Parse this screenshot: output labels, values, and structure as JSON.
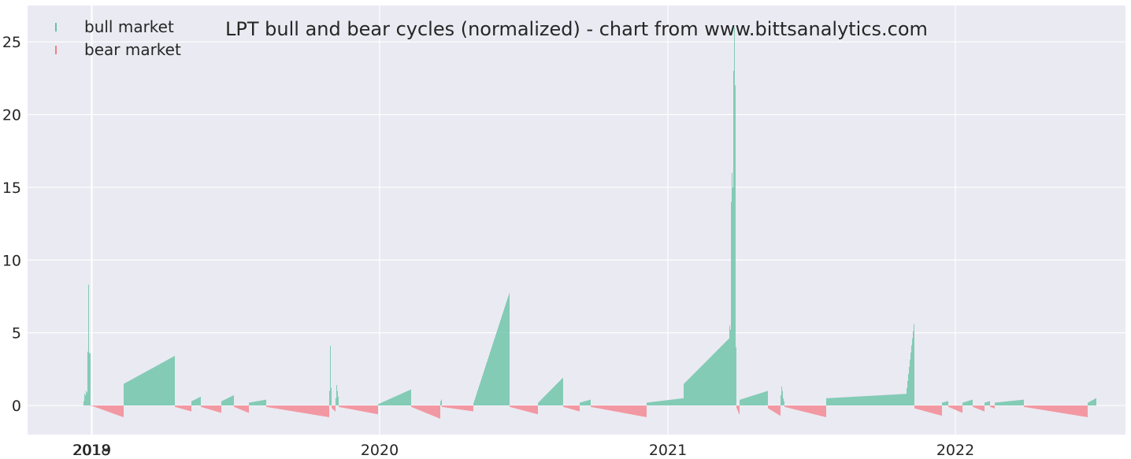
{
  "chart_data": {
    "type": "bar",
    "title": "LPT bull and bear cycles (normalized)  - chart from www.bittsanalytics.com",
    "xlabel": "",
    "ylabel": "",
    "ylim": [
      -2,
      27.5
    ],
    "xlim": [
      "2018-10-11",
      "2022-08-05"
    ],
    "x_ticks": [
      {
        "date": "2018-12-31",
        "label": "2018"
      },
      {
        "date": "2019-01-01",
        "label": "2019"
      },
      {
        "date": "2020-01-01",
        "label": "2020"
      },
      {
        "date": "2021-01-01",
        "label": "2021"
      },
      {
        "date": "2022-01-01",
        "label": "2022"
      }
    ],
    "y_ticks": [
      0,
      5,
      10,
      15,
      20,
      25
    ],
    "grid": true,
    "legend_position": "top-left",
    "series": [
      {
        "name": "bull market",
        "color": "#66c2a5"
      },
      {
        "name": "bear market",
        "color": "#f4808c"
      }
    ],
    "segments": [
      {
        "type": "bull",
        "start": "2018-12-21",
        "end": "2018-12-29",
        "values": [
          0.3,
          0.8,
          0.7,
          1.0,
          0.9,
          3.7,
          8.3,
          3.6
        ]
      },
      {
        "type": "bear",
        "start": "2018-12-30",
        "end": "2019-02-09",
        "from": 0.0,
        "to": -0.8
      },
      {
        "type": "bull",
        "start": "2019-02-10",
        "end": "2019-04-15",
        "from": 1.5,
        "to": 3.4
      },
      {
        "type": "bear",
        "start": "2019-04-16",
        "end": "2019-05-06",
        "from": -0.1,
        "to": -0.4
      },
      {
        "type": "bull",
        "start": "2019-05-07",
        "end": "2019-05-18",
        "from": 0.3,
        "to": 0.6
      },
      {
        "type": "bear",
        "start": "2019-05-19",
        "end": "2019-06-13",
        "from": -0.1,
        "to": -0.5
      },
      {
        "type": "bull",
        "start": "2019-06-14",
        "end": "2019-06-29",
        "from": 0.3,
        "to": 0.7
      },
      {
        "type": "bear",
        "start": "2019-06-30",
        "end": "2019-07-18",
        "from": -0.1,
        "to": -0.5
      },
      {
        "type": "bull",
        "start": "2019-07-19",
        "end": "2019-08-09",
        "from": 0.2,
        "to": 0.4
      },
      {
        "type": "bear",
        "start": "2019-08-10",
        "end": "2019-10-28",
        "from": -0.1,
        "to": -0.8
      },
      {
        "type": "bull",
        "start": "2019-10-29",
        "end": "2019-10-31",
        "values": [
          1.0,
          4.1,
          1.2
        ]
      },
      {
        "type": "bear",
        "start": "2019-11-01",
        "end": "2019-11-05",
        "from": -0.2,
        "to": -0.4
      },
      {
        "type": "bull",
        "start": "2019-11-06",
        "end": "2019-11-09",
        "values": [
          0.5,
          1.4,
          1.0,
          0.6
        ]
      },
      {
        "type": "bear",
        "start": "2019-11-10",
        "end": "2019-12-29",
        "from": -0.1,
        "to": -0.6
      },
      {
        "type": "bull",
        "start": "2019-12-30",
        "end": "2020-02-09",
        "from": 0.1,
        "to": 1.1
      },
      {
        "type": "bear",
        "start": "2020-02-10",
        "end": "2020-03-17",
        "from": -0.1,
        "to": -0.9
      },
      {
        "type": "bull",
        "start": "2020-03-18",
        "end": "2020-03-19",
        "values": [
          0.3,
          0.4
        ]
      },
      {
        "type": "bear",
        "start": "2020-03-20",
        "end": "2020-04-28",
        "from": -0.1,
        "to": -0.4
      },
      {
        "type": "bull",
        "start": "2020-04-29",
        "end": "2020-06-13",
        "from": 0.2,
        "to": 7.7
      },
      {
        "type": "bear",
        "start": "2020-06-14",
        "end": "2020-07-19",
        "from": -0.1,
        "to": -0.6
      },
      {
        "type": "bull",
        "start": "2020-07-20",
        "end": "2020-08-20",
        "from": 0.2,
        "to": 1.9
      },
      {
        "type": "bear",
        "start": "2020-08-21",
        "end": "2020-09-10",
        "from": -0.1,
        "to": -0.4
      },
      {
        "type": "bull",
        "start": "2020-09-11",
        "end": "2020-09-24",
        "from": 0.2,
        "to": 0.4
      },
      {
        "type": "bear",
        "start": "2020-09-25",
        "end": "2020-12-04",
        "from": -0.1,
        "to": -0.8
      },
      {
        "type": "bull",
        "start": "2020-12-05",
        "end": "2021-01-20",
        "from": 0.2,
        "to": 0.5
      },
      {
        "type": "bull",
        "start": "2021-01-21",
        "end": "2021-03-19",
        "from": 1.5,
        "to": 4.6
      },
      {
        "type": "bull",
        "start": "2021-03-20",
        "end": "2021-03-28",
        "values": [
          5.5,
          5.2,
          14.0,
          16.0,
          15.0,
          23.0,
          26.0,
          22.0,
          4.0
        ]
      },
      {
        "type": "bear",
        "start": "2021-03-29",
        "end": "2021-04-01",
        "from": -0.2,
        "to": -0.6
      },
      {
        "type": "bull",
        "start": "2021-04-02",
        "end": "2021-05-07",
        "from": 0.4,
        "to": 1.0
      },
      {
        "type": "bear",
        "start": "2021-05-08",
        "end": "2021-05-23",
        "from": -0.2,
        "to": -0.7
      },
      {
        "type": "bull",
        "start": "2021-05-24",
        "end": "2021-05-28",
        "values": [
          0.7,
          1.3,
          1.0,
          0.5,
          0.3
        ]
      },
      {
        "type": "bear",
        "start": "2021-05-29",
        "end": "2021-07-20",
        "from": -0.1,
        "to": -0.8
      },
      {
        "type": "bull",
        "start": "2021-07-21",
        "end": "2021-10-30",
        "from": 0.5,
        "to": 0.8
      },
      {
        "type": "bull",
        "start": "2021-10-31",
        "end": "2021-11-09",
        "from": 1.2,
        "to": 5.6
      },
      {
        "type": "bear",
        "start": "2021-11-10",
        "end": "2021-12-14",
        "from": -0.2,
        "to": -0.7
      },
      {
        "type": "bull",
        "start": "2021-12-15",
        "end": "2021-12-22",
        "from": 0.2,
        "to": 0.3
      },
      {
        "type": "bear",
        "start": "2021-12-23",
        "end": "2022-01-09",
        "from": -0.1,
        "to": -0.5
      },
      {
        "type": "bull",
        "start": "2022-01-10",
        "end": "2022-01-22",
        "from": 0.2,
        "to": 0.4
      },
      {
        "type": "bear",
        "start": "2022-01-23",
        "end": "2022-02-06",
        "from": -0.1,
        "to": -0.4
      },
      {
        "type": "bull",
        "start": "2022-02-07",
        "end": "2022-02-13",
        "from": 0.2,
        "to": 0.3
      },
      {
        "type": "bear",
        "start": "2022-02-14",
        "end": "2022-02-19",
        "from": -0.1,
        "to": -0.2
      },
      {
        "type": "bull",
        "start": "2022-02-20",
        "end": "2022-03-28",
        "from": 0.2,
        "to": 0.4
      },
      {
        "type": "bear",
        "start": "2022-03-29",
        "end": "2022-06-17",
        "from": -0.1,
        "to": -0.8
      },
      {
        "type": "bull",
        "start": "2022-06-18",
        "end": "2022-06-28",
        "from": 0.2,
        "to": 0.5
      }
    ]
  }
}
